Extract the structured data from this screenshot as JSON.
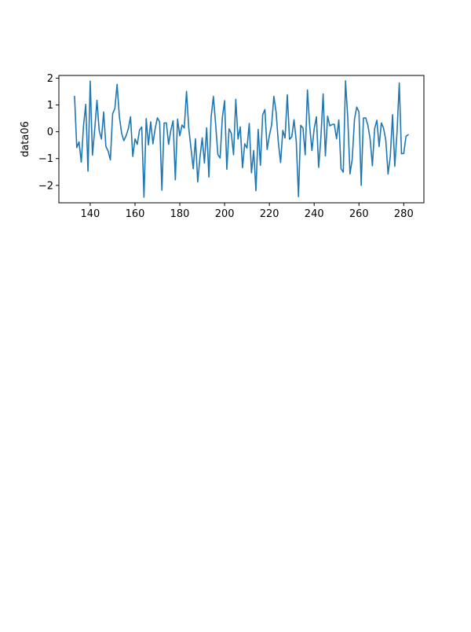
{
  "chart_data": {
    "type": "line",
    "title": "",
    "xlabel": "",
    "ylabel": "data06",
    "xlim": [
      126,
      289
    ],
    "ylim": [
      -2.65,
      2.1
    ],
    "x_ticks": [
      140,
      160,
      180,
      200,
      220,
      240,
      260,
      280
    ],
    "y_ticks": [
      -2,
      -1,
      0,
      1,
      2
    ],
    "grid": false,
    "line_color": "#1f77b4",
    "x_start": 133,
    "x_end": 282,
    "series": [
      {
        "values": [
          1.32,
          -0.59,
          -0.38,
          -1.13,
          0.22,
          1.02,
          -1.47,
          1.89,
          -0.87,
          0.08,
          1.17,
          0.05,
          -0.27,
          0.74,
          -0.55,
          -0.72,
          -1.05,
          0.67,
          0.87,
          1.77,
          0.58,
          -0.05,
          -0.33,
          -0.15,
          0.11,
          0.56,
          -0.92,
          -0.27,
          -0.47,
          0.06,
          0.18,
          -2.44,
          0.49,
          -0.49,
          0.37,
          -0.45,
          0.12,
          0.52,
          0.37,
          -2.18,
          0.33,
          0.33,
          -0.47,
          0.06,
          0.41,
          -1.79,
          0.47,
          -0.15,
          0.25,
          0.14,
          1.51,
          0.13,
          -0.62,
          -1.38,
          -0.26,
          -1.87,
          -0.96,
          -0.23,
          -1.17,
          0.15,
          -1.69,
          0.56,
          1.32,
          0.28,
          -0.85,
          -0.98,
          0.53,
          1.16,
          -1.4,
          0.11,
          -0.06,
          -0.86,
          1.21,
          -0.27,
          0.18,
          -1.34,
          -0.45,
          -0.61,
          0.31,
          -1.53,
          -0.7,
          -2.2,
          0.09,
          -1.25,
          0.63,
          0.83,
          -0.66,
          -0.14,
          0.25,
          1.32,
          0.73,
          -0.39,
          -1.15,
          0.05,
          -0.23,
          1.38,
          -0.28,
          -0.19,
          0.45,
          -0.35,
          -2.42,
          0.24,
          0.14,
          -0.86,
          1.56,
          0.21,
          -0.7,
          0.11,
          0.56,
          -1.33,
          -0.23,
          1.41,
          -0.9,
          0.58,
          0.22,
          0.27,
          0.28,
          -0.26,
          0.44,
          -1.38,
          -1.51,
          1.9,
          0.52,
          -1.57,
          -1.02,
          0.46,
          0.92,
          0.74,
          -2.0,
          0.51,
          0.52,
          0.24,
          -0.28,
          -1.27,
          0.12,
          0.43,
          -0.55,
          0.33,
          0.13,
          -0.32,
          -1.58,
          -0.91,
          0.64,
          -1.29,
          -0.02,
          1.82,
          -0.82,
          -0.81,
          -0.17,
          -0.11
        ]
      }
    ]
  }
}
